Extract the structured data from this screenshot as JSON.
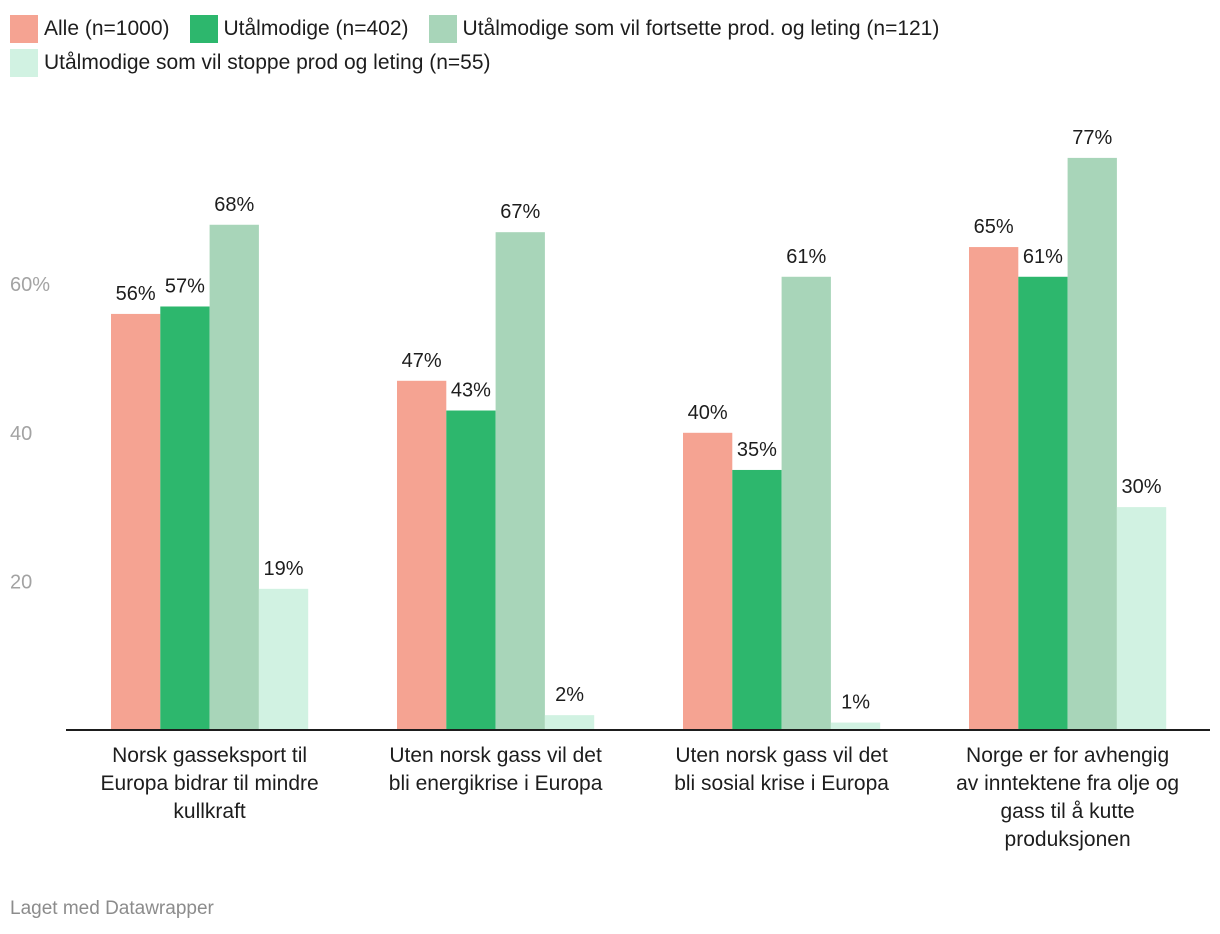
{
  "chart_data": {
    "type": "bar",
    "categories": [
      "Norsk gasseksport til Europa bidrar til mindre kullkraft",
      "Uten norsk gass vil det bli energikrise i Europa",
      "Uten norsk gass vil det bli sosial krise i Europa",
      "Norge er for avhengig av inntektene fra olje og gass til å kutte produksjonen"
    ],
    "category_lines": [
      [
        "Norsk gasseksport til",
        "Europa bidrar til mindre",
        "kullkraft"
      ],
      [
        "Uten norsk gass vil det",
        "bli energikrise i Europa"
      ],
      [
        "Uten norsk gass vil det",
        "bli sosial krise i Europa"
      ],
      [
        "Norge er for avhengig",
        "av inntektene fra olje og",
        "gass til å kutte",
        "produksjonen"
      ]
    ],
    "series": [
      {
        "name": "Alle (n=1000)",
        "color": "#f5a392",
        "values": [
          56,
          47,
          40,
          65
        ]
      },
      {
        "name": "Utålmodige (n=402)",
        "color": "#2db76d",
        "values": [
          57,
          43,
          35,
          61
        ]
      },
      {
        "name": "Utålmodige som vil fortsette prod. og leting (n=121)",
        "color": "#a8d5b9",
        "values": [
          68,
          67,
          61,
          77
        ]
      },
      {
        "name": "Utålmodige som vil stoppe prod og leting (n=55)",
        "color": "#d1f2e2",
        "values": [
          19,
          2,
          1,
          30
        ]
      }
    ],
    "value_labels": [
      [
        "56%",
        "47%",
        "40%",
        "65%"
      ],
      [
        "57%",
        "43%",
        "35%",
        "61%"
      ],
      [
        "68%",
        "67%",
        "61%",
        "77%"
      ],
      [
        "19%",
        "2%",
        "1%",
        "30%"
      ]
    ],
    "yticks": [
      20,
      40,
      60
    ],
    "ytick_labels": [
      "20",
      "40",
      "60%"
    ],
    "ylim": [
      0,
      80
    ],
    "grid": false,
    "legend_position": "top"
  },
  "footer": {
    "credit": "Laget med Datawrapper"
  }
}
